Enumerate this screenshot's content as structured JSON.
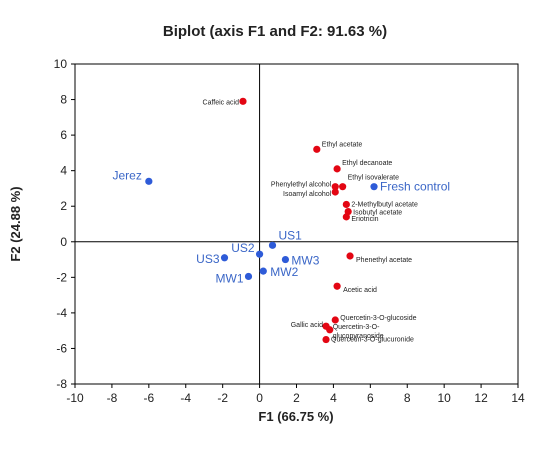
{
  "chart_data": {
    "type": "scatter",
    "title": "Biplot (axis F1 and F2: 91.63 %)",
    "xlabel": "F1 (66.75 %)",
    "ylabel": "F2 (24.88 %)",
    "xlim": [
      -10,
      14
    ],
    "ylim": [
      -8,
      10
    ],
    "xticks": [
      -10,
      -8,
      -6,
      -4,
      -2,
      0,
      2,
      4,
      6,
      8,
      10,
      12,
      14
    ],
    "yticks": [
      -8,
      -6,
      -4,
      -2,
      0,
      2,
      4,
      6,
      8,
      10
    ],
    "grid": false,
    "colors": {
      "variables": "#e30613",
      "observations": "#2e5bd8",
      "observation_labels": "#3a66c7",
      "axis": "#000000"
    },
    "series": [
      {
        "points": [
          {
            "label": "Caffeic acid",
            "x": -0.9,
            "y": 7.9
          },
          {
            "label": "Ethyl acetate",
            "x": 3.1,
            "y": 5.2
          },
          {
            "label": "Ethyl decanoate",
            "x": 4.2,
            "y": 4.1
          },
          {
            "label": "Ethyl isovalerate",
            "x": 4.5,
            "y": 3.1
          },
          {
            "label": "Phenylethyl alcohol",
            "x": 4.1,
            "y": 3.1
          },
          {
            "label": "Isoamyl alcohol",
            "x": 4.1,
            "y": 2.8
          },
          {
            "label": "2-Methylbutyl acetate",
            "x": 4.7,
            "y": 2.1
          },
          {
            "label": "Isobutyl acetate",
            "x": 4.8,
            "y": 1.7
          },
          {
            "label": "Eriotricin",
            "x": 4.7,
            "y": 1.4
          },
          {
            "label": "Phenethyl acetate",
            "x": 4.9,
            "y": -0.8
          },
          {
            "label": "Acetic acid",
            "x": 4.2,
            "y": -2.5
          },
          {
            "label": "Quercetin-3-O-glucoside",
            "x": 4.1,
            "y": -4.4
          },
          {
            "label": "Gallic acid",
            "x": 3.6,
            "y": -4.75
          },
          {
            "label": "Quercetin-3-O-glucopyranoside",
            "x": 3.8,
            "y": -4.95
          },
          {
            "label": "Quercetin-3-O-glucuronide",
            "x": 3.6,
            "y": -5.5
          }
        ]
      },
      {
        "points": [
          {
            "label": "Jerez",
            "x": -6.0,
            "y": 3.4
          },
          {
            "label": "Fresh control",
            "x": 6.2,
            "y": 3.1
          },
          {
            "label": "US1",
            "x": 0.7,
            "y": -0.2
          },
          {
            "label": "US2",
            "x": 0.0,
            "y": -0.7
          },
          {
            "label": "US3",
            "x": -1.9,
            "y": -0.9
          },
          {
            "label": "MW3",
            "x": 1.4,
            "y": -1.0
          },
          {
            "label": "MW2",
            "x": 0.2,
            "y": -1.65
          },
          {
            "label": "MW1",
            "x": -0.6,
            "y": -1.95
          }
        ]
      }
    ]
  }
}
